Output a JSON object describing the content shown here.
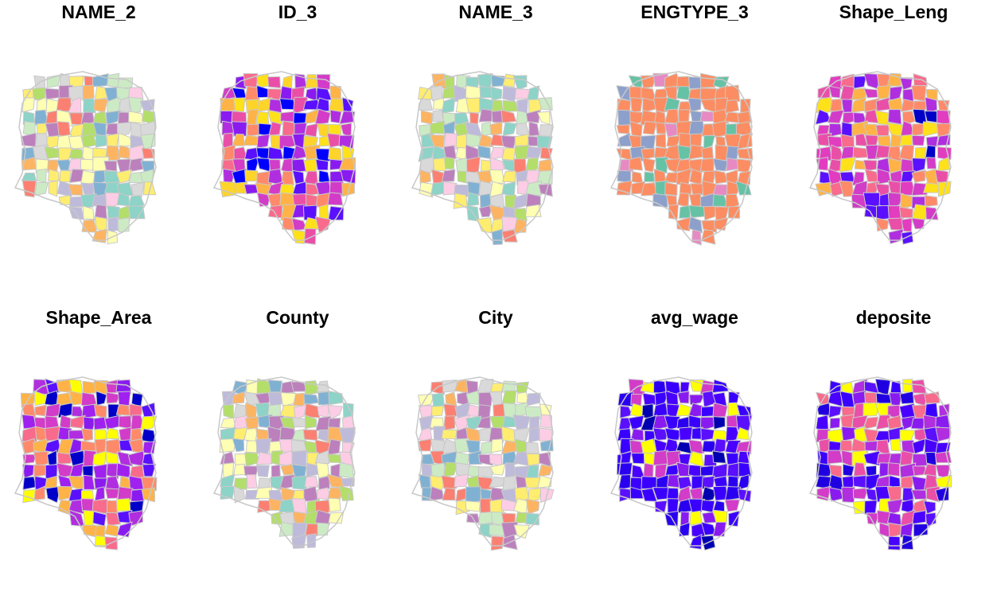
{
  "panels": [
    {
      "title": "NAME_2",
      "palette": [
        "#d9d9d9",
        "#8dd3c7",
        "#80b1d3",
        "#bebada",
        "#b3de69",
        "#fdb462",
        "#fccde5",
        "#fb8072",
        "#ccebc5",
        "#ffffb3",
        "#ffed6f",
        "#bc80bd"
      ]
    },
    {
      "title": "ID_3",
      "palette": [
        "#0000ff",
        "#5a10ff",
        "#8a1bf0",
        "#b02ee0",
        "#d23cc8",
        "#ea4fa8",
        "#f86b8c",
        "#ff8a6a",
        "#ffb347",
        "#ffd42a",
        "#ffe11a"
      ]
    },
    {
      "title": "NAME_3",
      "palette": [
        "#8dd3c7",
        "#ffffb3",
        "#bebada",
        "#fb8072",
        "#80b1d3",
        "#fdb462",
        "#b3de69",
        "#fccde5",
        "#d9d9d9",
        "#bc80bd",
        "#ccebc5",
        "#ffed6f"
      ]
    },
    {
      "title": "ENGTYPE_3",
      "palette": [
        "#fc8d62",
        "#fc8d62",
        "#fc8d62",
        "#fc8d62",
        "#fc8d62",
        "#8da0cb",
        "#fc8d62",
        "#66c2a5",
        "#e78ac3",
        "#fc8d62"
      ]
    },
    {
      "title": "Shape_Leng",
      "palette": [
        "#ea4fa8",
        "#d23cc8",
        "#b02ee0",
        "#f86b8c",
        "#ff8a6a",
        "#ffb347",
        "#ffe11a",
        "#5a10ff",
        "#0000c8",
        "#e23cc0"
      ]
    },
    {
      "title": "Shape_Area",
      "palette": [
        "#8a1bf0",
        "#b02ee0",
        "#5a10ff",
        "#d23cc8",
        "#f86b8c",
        "#ff8a6a",
        "#ffb347",
        "#ffff00",
        "#0000c8",
        "#a020f0"
      ]
    },
    {
      "title": "County",
      "palette": [
        "#8dd3c7",
        "#ffffb3",
        "#bebada",
        "#fb8072",
        "#80b1d3",
        "#fdb462",
        "#b3de69",
        "#fccde5",
        "#d9d9d9",
        "#bc80bd",
        "#ccebc5",
        "#ffed6f"
      ]
    },
    {
      "title": "City",
      "palette": [
        "#d9d9d9",
        "#8dd3c7",
        "#80b1d3",
        "#bebada",
        "#b3de69",
        "#fdb462",
        "#fccde5",
        "#fb8072",
        "#ccebc5",
        "#ffffb3",
        "#ffed6f",
        "#bc80bd"
      ]
    },
    {
      "title": "avg_wage",
      "palette": [
        "#3a00ff",
        "#3a00ff",
        "#4800ff",
        "#2a00f0",
        "#5a10ff",
        "#3a00ff",
        "#8a1bf0",
        "#0000b0",
        "#d23cc8",
        "#ffff00"
      ]
    },
    {
      "title": "deposite",
      "palette": [
        "#3a00ff",
        "#5a10ff",
        "#8a1bf0",
        "#b02ee0",
        "#2000e0",
        "#4800ff",
        "#d23cc8",
        "#ea4fa8",
        "#f86b8c",
        "#ffff00"
      ]
    }
  ],
  "styles": {
    "boundary": "#c8c8c8",
    "background": "#ffffff"
  }
}
